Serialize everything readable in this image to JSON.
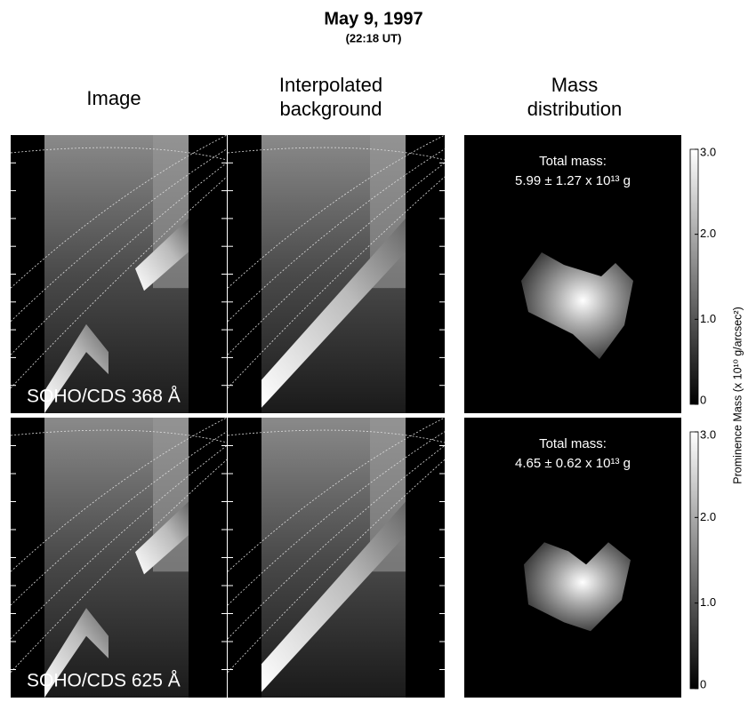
{
  "title": "May 9, 1997",
  "subtitle": "(22:18 UT)",
  "columns": [
    "Image",
    "Interpolated background",
    "Mass distribution"
  ],
  "rows": [
    {
      "label": "SOHO/CDS 368 Å",
      "mass_title": "Total mass:",
      "mass_value": "5.99 ± 1.27 x 10¹³ g"
    },
    {
      "label": "SOHO/CDS 625 Å",
      "mass_title": "Total mass:",
      "mass_value": "4.65 ± 0.62 x 10¹³ g"
    }
  ],
  "colorbar": {
    "label": "Prominence Mass (x 10¹⁰ g/arcsec²)",
    "lim": [
      0,
      3
    ],
    "ticks": [
      0,
      {
        "value": 1,
        "label": "1.0"
      },
      {
        "value": 2,
        "label": "2.0"
      },
      {
        "value": 3,
        "label": "3.0"
      }
    ]
  }
}
